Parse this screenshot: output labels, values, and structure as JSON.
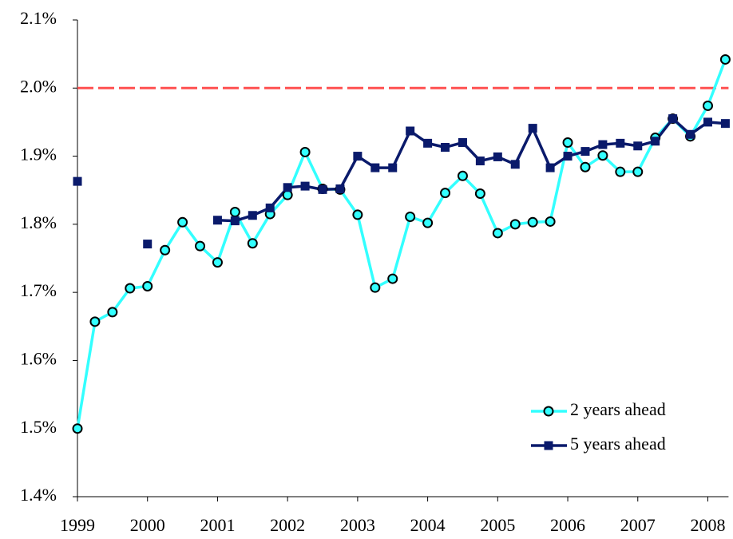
{
  "chart_data": {
    "type": "line",
    "categories": [
      "1999",
      null,
      null,
      null,
      "2000",
      null,
      null,
      null,
      "2001",
      null,
      null,
      null,
      "2002",
      null,
      null,
      null,
      "2003",
      null,
      null,
      null,
      "2004",
      null,
      null,
      null,
      "2005",
      null,
      null,
      null,
      "2006",
      null,
      null,
      null,
      "2007",
      null,
      null,
      null,
      "2008",
      null
    ],
    "series": [
      {
        "name": "2 years ahead",
        "color": "#33ffff",
        "marker": "circle",
        "values": [
          1.5,
          1.657,
          1.671,
          1.706,
          1.709,
          1.762,
          1.803,
          1.768,
          1.744,
          1.818,
          1.772,
          1.815,
          1.843,
          1.906,
          1.852,
          1.851,
          1.814,
          1.707,
          1.72,
          1.811,
          1.802,
          1.846,
          1.871,
          1.845,
          1.787,
          1.8,
          1.803,
          1.804,
          1.92,
          1.884,
          1.901,
          1.877,
          1.877,
          1.927,
          1.955,
          1.929,
          1.974,
          2.042
        ]
      },
      {
        "name": "5 years ahead",
        "color": "#0a1a6b",
        "marker": "square",
        "values": [
          1.863,
          null,
          null,
          null,
          1.771,
          null,
          null,
          null,
          1.806,
          1.805,
          1.813,
          1.824,
          1.854,
          1.856,
          1.851,
          1.852,
          1.9,
          1.883,
          1.883,
          1.937,
          1.919,
          1.913,
          1.92,
          1.893,
          1.899,
          1.888,
          1.941,
          1.883,
          1.9,
          1.907,
          1.917,
          1.919,
          1.915,
          1.922,
          1.955,
          1.932,
          1.95,
          1.948
        ]
      }
    ],
    "reference_line": {
      "value": 2.0,
      "color": "#ff5050"
    },
    "ylim": [
      1.4,
      2.1
    ],
    "yticks": [
      {
        "value": 1.4,
        "label": "1.4%"
      },
      {
        "value": 1.5,
        "label": "1.5%"
      },
      {
        "value": 1.6,
        "label": "1.6%"
      },
      {
        "value": 1.7,
        "label": "1.7%"
      },
      {
        "value": 1.8,
        "label": "1.8%"
      },
      {
        "value": 1.9,
        "label": "1.9%"
      },
      {
        "value": 2.0,
        "label": "2.0%"
      },
      {
        "value": 2.1,
        "label": "2.1%"
      }
    ],
    "legend": "lower right"
  }
}
